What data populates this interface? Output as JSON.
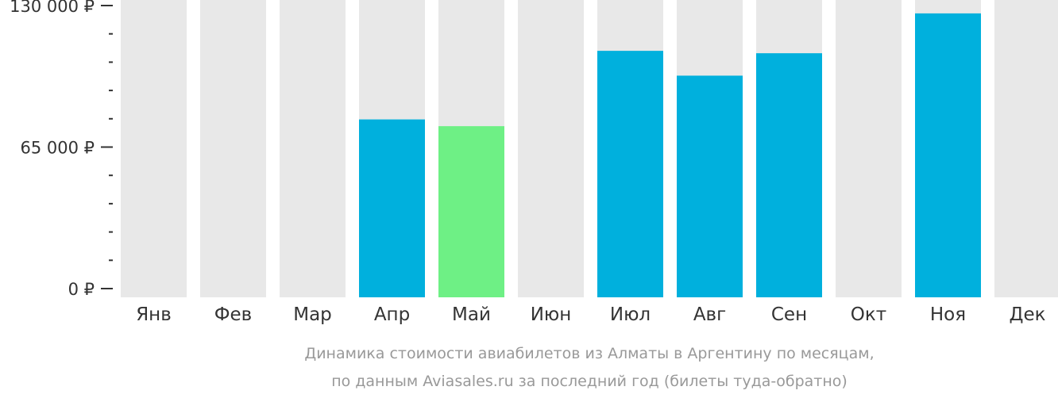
{
  "chart_data": {
    "type": "bar",
    "categories": [
      "Янв",
      "Фев",
      "Мар",
      "Апр",
      "Май",
      "Июн",
      "Июл",
      "Авг",
      "Сен",
      "Окт",
      "Ноя",
      "Дек"
    ],
    "values": [
      null,
      null,
      null,
      77700,
      74600,
      null,
      109200,
      97800,
      108100,
      null,
      126400,
      null
    ],
    "highlight_index": 4,
    "ylim": [
      0,
      130000
    ],
    "y_ticks": [
      {
        "value": 0,
        "label": "0 ₽"
      },
      {
        "value": 65000,
        "label": "65 000 ₽"
      },
      {
        "value": 130000,
        "label": "130 000 ₽"
      }
    ],
    "y_minor_step": 13000,
    "title": "",
    "xlabel": "",
    "ylabel": "",
    "caption": [
      "Динамика стоимости авиабилетов из Алматы в Аргентину по месяцам,",
      "по данным Aviasales.ru за последний год (билеты туда-обратно)"
    ],
    "colors": {
      "background_bar": "#e8e8e8",
      "bar": "#00b0dd",
      "highlight_bar": "#6ef085",
      "axis": "#333333",
      "caption": "#999999"
    }
  }
}
